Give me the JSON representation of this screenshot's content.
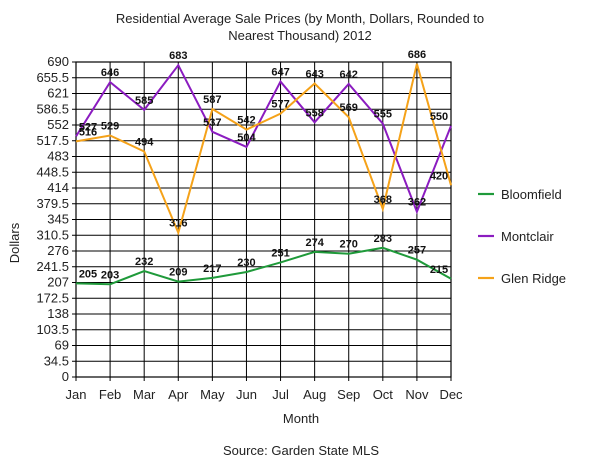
{
  "chart_data": {
    "type": "line",
    "title_line1": "Residential Average Sale Prices (by Month, Dollars, Rounded to",
    "title_line2": "Nearest Thousand) 2012",
    "xlabel": "Month",
    "ylabel": "Dollars",
    "source": "Source: Garden State MLS",
    "categories": [
      "Jan",
      "Feb",
      "Mar",
      "Apr",
      "May",
      "Jun",
      "Jul",
      "Aug",
      "Sep",
      "Oct",
      "Nov",
      "Dec"
    ],
    "yticks": [
      "0",
      "34.5",
      "69",
      "103.5",
      "138",
      "172.5",
      "207",
      "241.5",
      "276",
      "310.5",
      "345",
      "379.5",
      "414",
      "448.5",
      "483",
      "517.5",
      "552",
      "586.5",
      "621",
      "655.5",
      "690"
    ],
    "ylim": [
      0,
      690
    ],
    "grid": true,
    "legend_position": "right",
    "series": [
      {
        "name": "Bloomfield",
        "color": "#1f9a3a",
        "values": [
          205,
          203,
          232,
          209,
          217,
          230,
          251,
          274,
          270,
          283,
          257,
          215
        ],
        "labels": [
          "205",
          "203",
          "232",
          "209",
          "217",
          "230",
          "251",
          "274",
          "270",
          "283",
          "257",
          "215"
        ]
      },
      {
        "name": "Montclair",
        "color": "#8b1cc0",
        "values": [
          527,
          646,
          585,
          683,
          537,
          504,
          647,
          558,
          642,
          555,
          362,
          550
        ],
        "labels": [
          "527",
          "646",
          "585",
          "683",
          "537",
          "504",
          "647",
          "558",
          "642",
          "555",
          "362",
          "550"
        ]
      },
      {
        "name": "Glen Ridge",
        "color": "#f5a219",
        "values": [
          516,
          529,
          494,
          316,
          587,
          542,
          577,
          643,
          569,
          368,
          686,
          420
        ],
        "labels": [
          "516",
          "529",
          "494",
          "316",
          "587",
          "542",
          "577",
          "643",
          "569",
          "368",
          "686",
          "420"
        ]
      }
    ]
  }
}
